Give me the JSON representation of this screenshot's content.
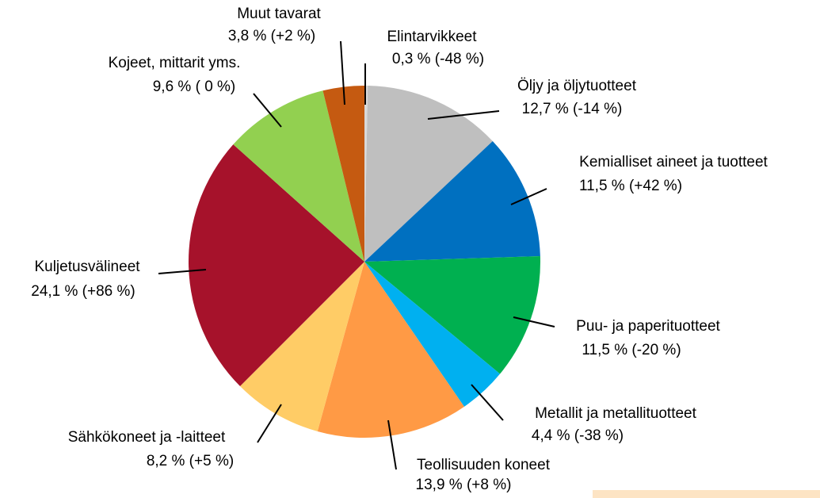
{
  "chart_data": {
    "type": "pie",
    "categories": [
      "Elintarvikkeet",
      "Öljy ja öljytuotteet",
      "Kemialliset aineet ja tuotteet",
      "Puu- ja paperituotteet",
      "Metallit ja metallituotteet",
      "Teollisuuden koneet",
      "Sähkökoneet ja -laitteet",
      "Kuljetusvälineet",
      "Kojeet, mittarit yms.",
      "Muut tavarat"
    ],
    "values": [
      0.3,
      12.7,
      11.5,
      11.5,
      4.4,
      13.9,
      8.2,
      24.1,
      9.6,
      3.8
    ],
    "value_labels": [
      "0,3 % (-48 %)",
      "12,7 % (-14 %)",
      "11,5 % (+42 %)",
      "11,5 % (-20 %)",
      "4,4 % (-38 %)",
      "13,9 % (+8 %)",
      "8,2 % (+5 %)",
      "24,1 % (+86 %)",
      "9,6 % ( 0 %)",
      "3,8 % (+2 %)"
    ],
    "colors": [
      "#d9d9d9",
      "#bfbfbf",
      "#0070c0",
      "#00b050",
      "#00b0f0",
      "#ff9a45",
      "#ffcc66",
      "#a6122b",
      "#92d050",
      "#c55a11"
    ]
  }
}
